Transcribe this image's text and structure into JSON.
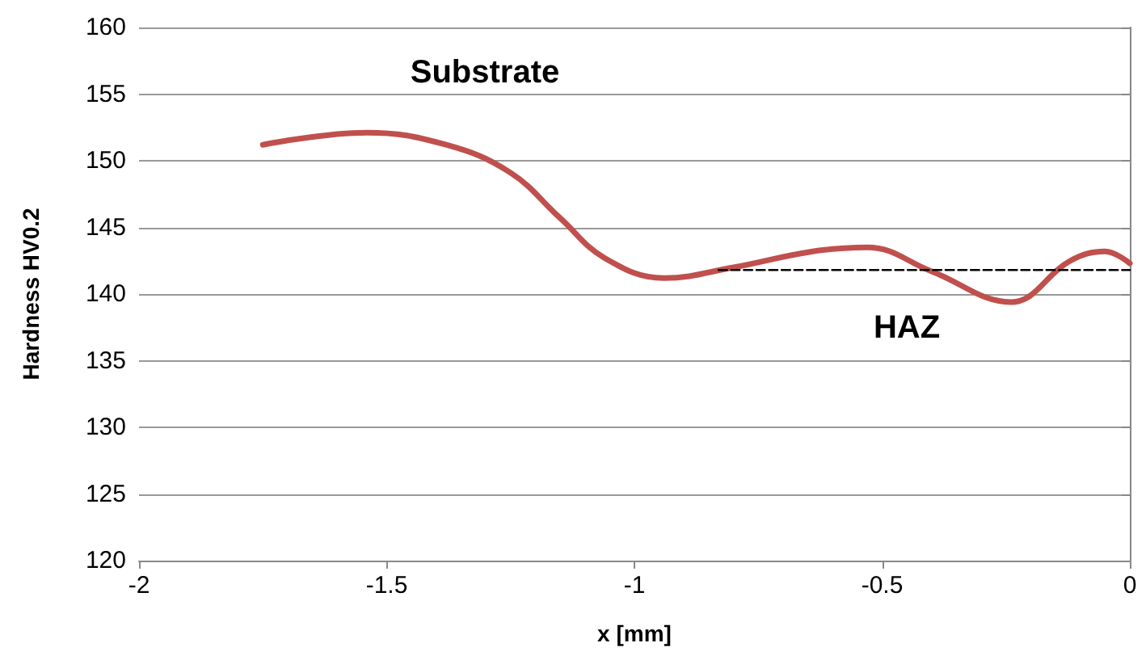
{
  "chart_data": {
    "type": "line",
    "xlabel": "x [mm]",
    "ylabel": "Hardness HV0.2",
    "xlim": [
      -2,
      0
    ],
    "xticks": [
      -2,
      -1.5,
      -1,
      -0.5,
      0
    ],
    "ylim": [
      120,
      160
    ],
    "yticks": [
      120,
      125,
      130,
      135,
      140,
      145,
      150,
      155,
      160
    ],
    "grid": "y",
    "marker": "none",
    "series": [
      {
        "color": "#c0504d",
        "x": [
          -1.75,
          -1.54,
          -1.38,
          -1.25,
          -1.15,
          -1.06,
          -0.94,
          -0.8,
          -0.64,
          -0.53,
          -0.4,
          -0.24,
          -0.12,
          -0.05,
          0
        ],
        "values": [
          151.2,
          152.1,
          151.2,
          149.1,
          145.7,
          142.7,
          141.2,
          142,
          143.2,
          143.5,
          141.7,
          139.4,
          142.5,
          143.2,
          142.3
        ]
      },
      {
        "color": "#000000",
        "line_style": "dashed",
        "x": [
          -0.83,
          0
        ],
        "values": [
          141.8,
          141.8
        ]
      }
    ],
    "annotations": [
      "Substrate",
      "HAZ"
    ]
  }
}
